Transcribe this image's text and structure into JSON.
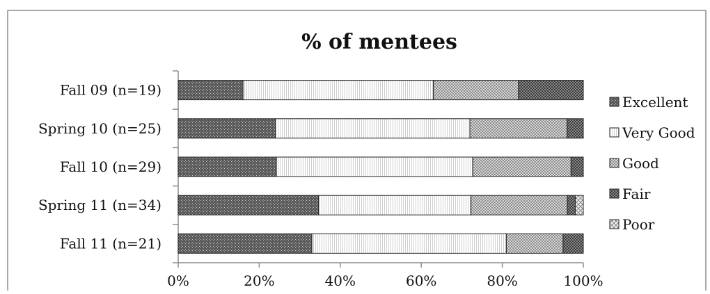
{
  "chart_data": {
    "type": "bar",
    "orientation": "horizontal",
    "stacked": "percent",
    "title": "% of mentees",
    "xlabel": "",
    "ylabel": "",
    "xlim": [
      0,
      100
    ],
    "x_ticks": [
      "0%",
      "20%",
      "40%",
      "60%",
      "80%",
      "100%"
    ],
    "categories": [
      "Fall 09 (n=19)",
      "Spring 10 (n=25)",
      "Fall 10 (n=29)",
      "Spring 11 (n=34)",
      "Fall 11 (n=21)"
    ],
    "series": [
      {
        "name": "Excellent",
        "values": [
          16,
          24,
          24,
          35,
          33
        ],
        "color": "#5a5a5a",
        "pattern": "dense-dots-dark"
      },
      {
        "name": "Very Good",
        "values": [
          47,
          48,
          48,
          38,
          48
        ],
        "color": "#f2f2f2",
        "pattern": "vertical-lines-light"
      },
      {
        "name": "Good",
        "values": [
          21,
          24,
          24,
          24,
          14
        ],
        "color": "#b5b5b5",
        "pattern": "checker-light"
      },
      {
        "name": "Fair",
        "values": [
          16,
          4,
          3,
          2,
          5
        ],
        "color": "#6e6e6e",
        "pattern": "checker-dark"
      },
      {
        "name": "Poor",
        "values": [
          0,
          0,
          0,
          2,
          0
        ],
        "color": "#dcdcdc",
        "pattern": "diamond-light"
      }
    ],
    "legend": "right",
    "grid": false
  }
}
